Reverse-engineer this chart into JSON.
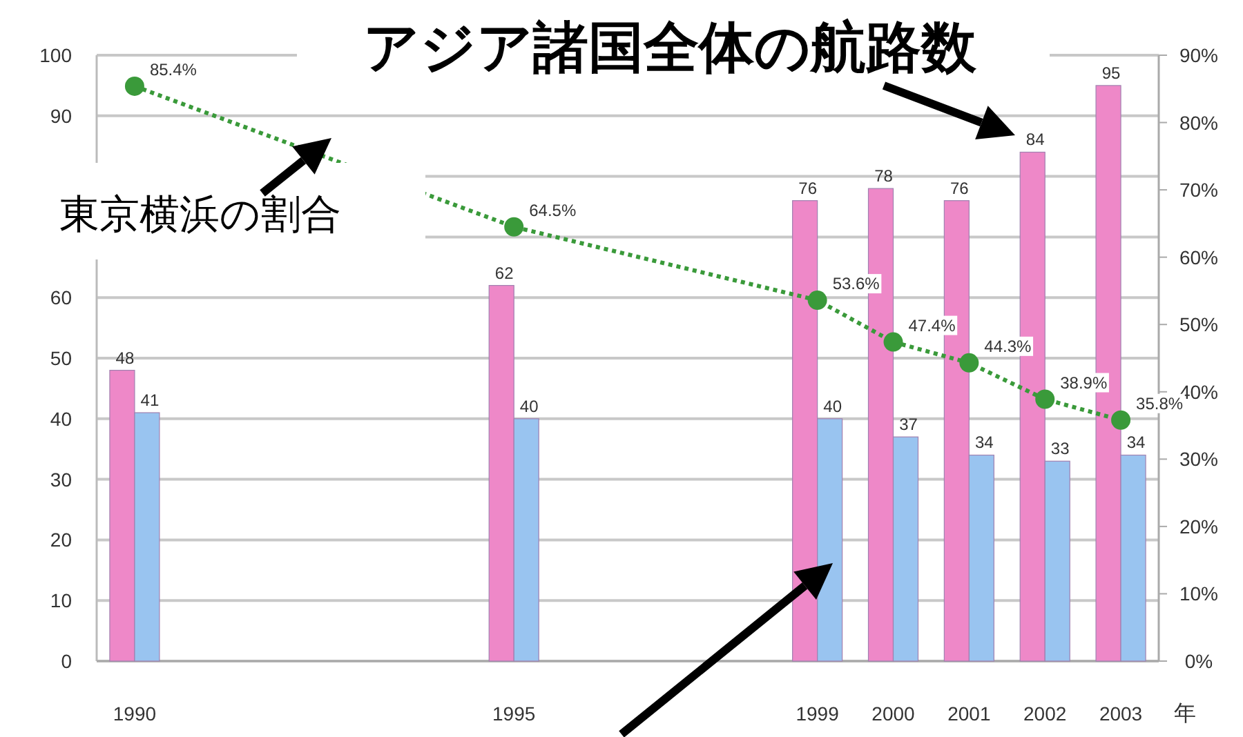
{
  "chart_data": {
    "type": "bar",
    "categories": [
      "1990",
      null,
      null,
      null,
      null,
      "1995",
      null,
      null,
      null,
      "1999",
      "2000",
      "2001",
      "2002",
      "2003"
    ],
    "xlabel": "年",
    "series": [
      {
        "color": "#ee88c8",
        "values": [
          48,
          null,
          null,
          null,
          null,
          62,
          null,
          null,
          null,
          76,
          78,
          76,
          84,
          95
        ],
        "value_labels": [
          "48",
          null,
          null,
          null,
          null,
          "62",
          null,
          null,
          null,
          "76",
          "78",
          "76",
          "84",
          "95"
        ]
      },
      {
        "color": "#99c4f0",
        "values": [
          41,
          null,
          null,
          null,
          null,
          40,
          null,
          null,
          null,
          40,
          37,
          34,
          33,
          34
        ],
        "value_labels": [
          "41",
          null,
          null,
          null,
          null,
          "40",
          null,
          null,
          null,
          "40",
          "37",
          "34",
          "33",
          "34"
        ]
      },
      {
        "type": "line",
        "axis": "y2",
        "color": "#3a9a3a",
        "values": [
          85.4,
          null,
          null,
          null,
          null,
          64.5,
          null,
          null,
          null,
          53.6,
          47.4,
          44.3,
          38.9,
          35.8
        ],
        "value_labels": [
          "85.4%",
          null,
          null,
          null,
          null,
          "64.5%",
          null,
          null,
          null,
          "53.6%",
          "47.4%",
          "44.3%",
          "38.9%",
          "35.8%"
        ]
      }
    ],
    "ylim": [
      0,
      100
    ],
    "yticks": [
      0,
      10,
      20,
      30,
      40,
      50,
      60,
      {
        "value": 70,
        "label": null
      },
      {
        "value": 80,
        "label": null
      },
      90,
      100
    ],
    "y2lim": [
      0,
      90
    ],
    "y2ticks": [
      {
        "value": 0,
        "label": "0%"
      },
      {
        "value": 10,
        "label": "10%"
      },
      {
        "value": 20,
        "label": "20%"
      },
      {
        "value": 30,
        "label": "30%"
      },
      {
        "value": 40,
        "label": "40%"
      },
      {
        "value": 50,
        "label": "50%"
      },
      {
        "value": 60,
        "label": "60%"
      },
      {
        "value": 70,
        "label": "70%"
      },
      {
        "value": 80,
        "label": "80%"
      },
      {
        "value": 90,
        "label": "90%"
      }
    ],
    "grid": "y",
    "marker": "circle",
    "line_style": "dotted",
    "annotations": [
      "アジア諸国全体の航路数",
      "東京横浜の割合"
    ]
  }
}
